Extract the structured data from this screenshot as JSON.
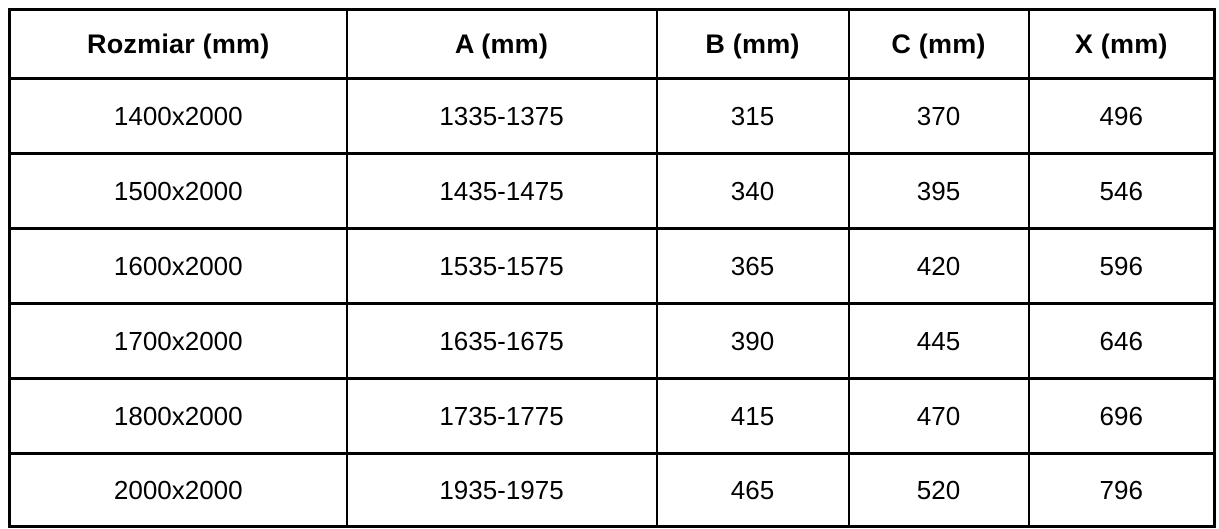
{
  "table": {
    "title": "size-specification-table",
    "colors": {
      "border": "#000000",
      "background": "#ffffff",
      "text": "#000000"
    },
    "headers": [
      "Rozmiar (mm)",
      "A (mm)",
      "B (mm)",
      "C (mm)",
      "X (mm)"
    ],
    "rows": [
      [
        "1400x2000",
        "1335-1375",
        "315",
        "370",
        "496"
      ],
      [
        "1500x2000",
        "1435-1475",
        "340",
        "395",
        "546"
      ],
      [
        "1600x2000",
        "1535-1575",
        "365",
        "420",
        "596"
      ],
      [
        "1700x2000",
        "1635-1675",
        "390",
        "445",
        "646"
      ],
      [
        "1800x2000",
        "1735-1775",
        "415",
        "470",
        "696"
      ],
      [
        "2000x2000",
        "1935-1975",
        "465",
        "520",
        "796"
      ]
    ]
  }
}
